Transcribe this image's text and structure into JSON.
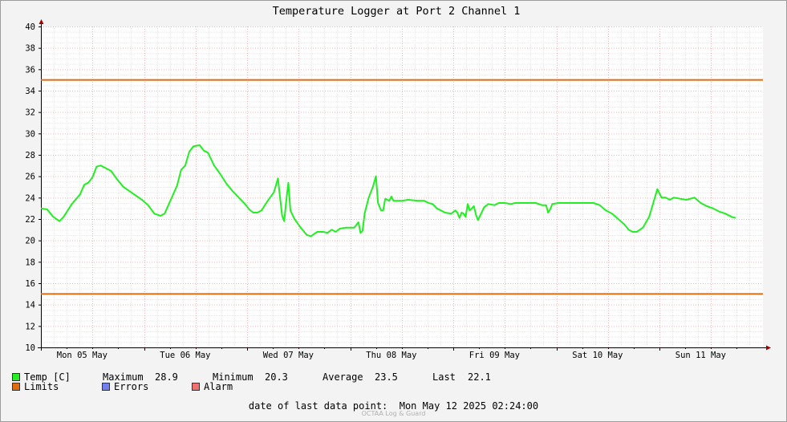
{
  "chart_data": {
    "type": "line",
    "title": "Temperature Logger at Port 2 Channel 1",
    "ylim": [
      10,
      40
    ],
    "y_ticks": [
      10,
      12,
      14,
      16,
      18,
      20,
      22,
      24,
      26,
      28,
      30,
      32,
      34,
      36,
      38,
      40
    ],
    "x_range_days": [
      0,
      7
    ],
    "x_ticks": [
      "Mon 05 May",
      "Tue 06 May",
      "Wed 07 May",
      "Thu 08 May",
      "Fri 09 May",
      "Sat 10 May",
      "Sun 11 May"
    ],
    "grid": true,
    "limits": {
      "upper": 35,
      "lower": 15
    },
    "series": [
      {
        "name": "Temp [C]",
        "color": "#22ee22",
        "points": [
          [
            0.0,
            23.0
          ],
          [
            0.06,
            22.9
          ],
          [
            0.12,
            22.2
          ],
          [
            0.18,
            21.8
          ],
          [
            0.22,
            22.2
          ],
          [
            0.3,
            23.4
          ],
          [
            0.38,
            24.3
          ],
          [
            0.42,
            25.2
          ],
          [
            0.46,
            25.4
          ],
          [
            0.5,
            25.9
          ],
          [
            0.54,
            26.9
          ],
          [
            0.58,
            27.0
          ],
          [
            0.62,
            26.8
          ],
          [
            0.68,
            26.5
          ],
          [
            0.74,
            25.7
          ],
          [
            0.8,
            25.0
          ],
          [
            0.86,
            24.6
          ],
          [
            0.92,
            24.2
          ],
          [
            0.98,
            23.8
          ],
          [
            1.04,
            23.3
          ],
          [
            1.1,
            22.5
          ],
          [
            1.16,
            22.3
          ],
          [
            1.2,
            22.5
          ],
          [
            1.26,
            23.8
          ],
          [
            1.32,
            25.1
          ],
          [
            1.36,
            26.6
          ],
          [
            1.4,
            27.0
          ],
          [
            1.44,
            28.3
          ],
          [
            1.48,
            28.8
          ],
          [
            1.54,
            28.9
          ],
          [
            1.58,
            28.4
          ],
          [
            1.62,
            28.2
          ],
          [
            1.68,
            27.0
          ],
          [
            1.74,
            26.2
          ],
          [
            1.8,
            25.3
          ],
          [
            1.86,
            24.6
          ],
          [
            1.92,
            24.0
          ],
          [
            1.98,
            23.4
          ],
          [
            2.02,
            22.9
          ],
          [
            2.06,
            22.6
          ],
          [
            2.1,
            22.6
          ],
          [
            2.14,
            22.8
          ],
          [
            2.2,
            23.7
          ],
          [
            2.26,
            24.5
          ],
          [
            2.3,
            25.8
          ],
          [
            2.32,
            24.0
          ],
          [
            2.34,
            22.3
          ],
          [
            2.36,
            21.8
          ],
          [
            2.38,
            23.7
          ],
          [
            2.4,
            25.4
          ],
          [
            2.42,
            22.8
          ],
          [
            2.46,
            22.0
          ],
          [
            2.52,
            21.2
          ],
          [
            2.58,
            20.5
          ],
          [
            2.62,
            20.4
          ],
          [
            2.68,
            20.8
          ],
          [
            2.74,
            20.8
          ],
          [
            2.78,
            20.7
          ],
          [
            2.82,
            21.0
          ],
          [
            2.86,
            20.8
          ],
          [
            2.9,
            21.1
          ],
          [
            2.96,
            21.2
          ],
          [
            3.04,
            21.2
          ],
          [
            3.08,
            21.7
          ],
          [
            3.1,
            20.7
          ],
          [
            3.12,
            20.9
          ],
          [
            3.14,
            22.5
          ],
          [
            3.18,
            24.0
          ],
          [
            3.22,
            25.0
          ],
          [
            3.25,
            26.0
          ],
          [
            3.27,
            23.5
          ],
          [
            3.3,
            22.8
          ],
          [
            3.32,
            22.8
          ],
          [
            3.34,
            23.9
          ],
          [
            3.38,
            23.7
          ],
          [
            3.4,
            24.1
          ],
          [
            3.42,
            23.7
          ],
          [
            3.5,
            23.7
          ],
          [
            3.56,
            23.8
          ],
          [
            3.66,
            23.7
          ],
          [
            3.72,
            23.7
          ],
          [
            3.76,
            23.5
          ],
          [
            3.8,
            23.4
          ],
          [
            3.84,
            23.0
          ],
          [
            3.88,
            22.8
          ],
          [
            3.92,
            22.6
          ],
          [
            3.98,
            22.5
          ],
          [
            4.02,
            22.8
          ],
          [
            4.04,
            22.6
          ],
          [
            4.06,
            22.1
          ],
          [
            4.08,
            22.6
          ],
          [
            4.1,
            22.5
          ],
          [
            4.12,
            22.2
          ],
          [
            4.14,
            23.4
          ],
          [
            4.16,
            22.8
          ],
          [
            4.2,
            23.2
          ],
          [
            4.22,
            22.4
          ],
          [
            4.24,
            21.9
          ],
          [
            4.26,
            22.3
          ],
          [
            4.3,
            23.1
          ],
          [
            4.34,
            23.4
          ],
          [
            4.4,
            23.3
          ],
          [
            4.44,
            23.5
          ],
          [
            4.5,
            23.5
          ],
          [
            4.56,
            23.4
          ],
          [
            4.6,
            23.5
          ],
          [
            4.66,
            23.5
          ],
          [
            4.74,
            23.5
          ],
          [
            4.8,
            23.5
          ],
          [
            4.86,
            23.3
          ],
          [
            4.9,
            23.3
          ],
          [
            4.92,
            22.6
          ],
          [
            4.94,
            22.9
          ],
          [
            4.96,
            23.4
          ],
          [
            5.02,
            23.5
          ],
          [
            5.1,
            23.5
          ],
          [
            5.2,
            23.5
          ],
          [
            5.28,
            23.5
          ],
          [
            5.36,
            23.5
          ],
          [
            5.42,
            23.3
          ],
          [
            5.48,
            22.8
          ],
          [
            5.54,
            22.5
          ],
          [
            5.6,
            22.0
          ],
          [
            5.66,
            21.5
          ],
          [
            5.7,
            21.0
          ],
          [
            5.74,
            20.8
          ],
          [
            5.78,
            20.8
          ],
          [
            5.84,
            21.2
          ],
          [
            5.9,
            22.2
          ],
          [
            5.94,
            23.5
          ],
          [
            5.98,
            24.8
          ],
          [
            6.02,
            24.0
          ],
          [
            6.06,
            24.0
          ],
          [
            6.1,
            23.8
          ],
          [
            6.14,
            24.0
          ],
          [
            6.2,
            23.9
          ],
          [
            6.26,
            23.8
          ],
          [
            6.34,
            24.0
          ],
          [
            6.4,
            23.5
          ],
          [
            6.46,
            23.2
          ],
          [
            6.52,
            23.0
          ],
          [
            6.58,
            22.7
          ],
          [
            6.64,
            22.5
          ],
          [
            6.7,
            22.2
          ],
          [
            6.74,
            22.1
          ]
        ]
      }
    ],
    "limits_color": "#e06c10",
    "errors_color": "#7080f0",
    "alarm_color": "#f07070"
  },
  "legend": {
    "temp_label": "Temp [C]",
    "maximum_label": "Maximum",
    "maximum_value": "28.9",
    "minimum_label": "Minimum",
    "minimum_value": "20.3",
    "average_label": "Average",
    "average_value": "23.5",
    "last_label": "Last",
    "last_value": "22.1",
    "limits_label": "Limits",
    "errors_label": "Errors",
    "alarm_label": "Alarm"
  },
  "footer": {
    "date_label": "date of last data point:",
    "date_value": "Mon May 12 2025 02:24:00",
    "watermark": "OCTAA Log & Guard"
  }
}
